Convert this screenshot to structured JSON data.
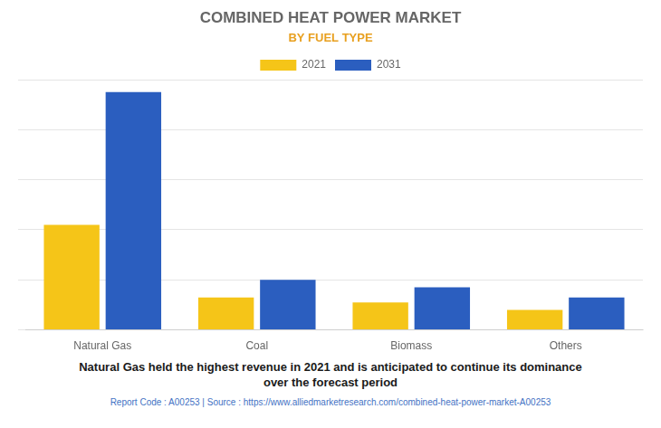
{
  "chart_data": {
    "type": "bar",
    "title": "COMBINED HEAT POWER MARKET",
    "subtitle": "BY FUEL TYPE",
    "categories": [
      "Natural Gas",
      "Coal",
      "Biomass",
      "Others"
    ],
    "series": [
      {
        "name": "2021",
        "color": "#F5C518",
        "values": [
          42,
          13,
          11,
          8
        ]
      },
      {
        "name": "2031",
        "color": "#2B5EBF",
        "values": [
          95,
          20,
          17,
          13
        ]
      }
    ],
    "ylim": [
      0,
      100
    ],
    "yticks": [
      0,
      20,
      40,
      60,
      80,
      100
    ],
    "grid": true,
    "legend": "top",
    "tick_labels": "x",
    "annotations": [
      "Natural Gas held the highest revenue in 2021 and is anticipated to continue its dominance\nover the forecast period",
      "Report Code : A00253  |  Source : https://www.alliedmarketresearch.com/combined-heat-power-market-A00253"
    ]
  }
}
